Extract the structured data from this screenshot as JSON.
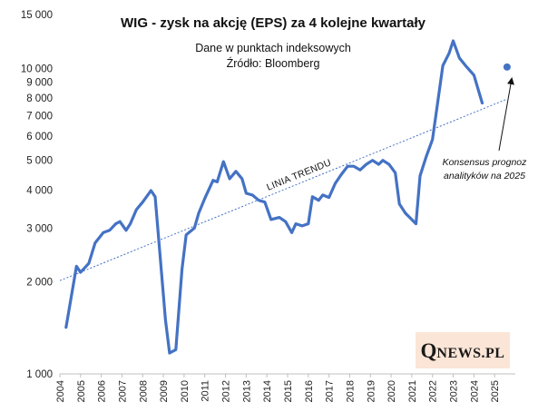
{
  "chart_data": {
    "type": "line",
    "title": "WIG - zysk na akcję (EPS) za 4 kolejne kwartały",
    "subtitle_lines": [
      "Dane w punktach indeksowych",
      "Źródło: Bloomberg"
    ],
    "y_scale": "log",
    "ylim": [
      1000,
      15000
    ],
    "yticks": [
      1000,
      2000,
      3000,
      4000,
      5000,
      6000,
      7000,
      8000,
      9000,
      10000,
      15000
    ],
    "ytick_labels": [
      "1 000",
      "2 000",
      "3 000",
      "4 000",
      "5 000",
      "6 000",
      "7 000",
      "8 000",
      "9 000",
      "10 000",
      "15 000"
    ],
    "xlim": [
      2004,
      2026
    ],
    "xticks": [
      2004,
      2005,
      2006,
      2007,
      2008,
      2009,
      2010,
      2011,
      2012,
      2013,
      2014,
      2015,
      2016,
      2017,
      2018,
      2019,
      2020,
      2021,
      2022,
      2023,
      2024,
      2025
    ],
    "xtick_labels": [
      "2004",
      "2005",
      "2006",
      "2007",
      "2008",
      "2009",
      "2010",
      "2011",
      "2012",
      "2013",
      "2014",
      "2015",
      "2016",
      "2017",
      "2018",
      "2019",
      "2020",
      "2021",
      "2022",
      "2023",
      "2024",
      "2025"
    ],
    "grid": false,
    "series": [
      {
        "name": "",
        "color": "#4472c4",
        "x": [
          2004.3,
          2004.8,
          2005.0,
          2005.4,
          2005.7,
          2006.1,
          2006.4,
          2006.7,
          2006.9,
          2007.2,
          2007.4,
          2007.7,
          2008.0,
          2008.4,
          2008.6,
          2009.1,
          2009.3,
          2009.6,
          2009.9,
          2010.1,
          2010.5,
          2010.7,
          2011.0,
          2011.4,
          2011.6,
          2011.9,
          2012.2,
          2012.5,
          2012.8,
          2013.0,
          2013.3,
          2013.6,
          2013.9,
          2014.2,
          2014.6,
          2014.9,
          2015.2,
          2015.4,
          2015.7,
          2016.0,
          2016.2,
          2016.5,
          2016.7,
          2017.0,
          2017.3,
          2017.6,
          2017.9,
          2018.2,
          2018.5,
          2018.8,
          2019.1,
          2019.4,
          2019.6,
          2019.9,
          2020.2,
          2020.4,
          2020.7,
          2020.9,
          2021.2,
          2021.4,
          2021.7,
          2022.0,
          2022.5,
          2022.8,
          2023.0,
          2023.3,
          2023.6,
          2024.0,
          2024.4
        ],
        "y": [
          1420,
          2250,
          2150,
          2300,
          2680,
          2900,
          2950,
          3100,
          3150,
          2950,
          3100,
          3450,
          3650,
          3980,
          3800,
          1500,
          1170,
          1200,
          2200,
          2850,
          3000,
          3350,
          3750,
          4300,
          4250,
          4950,
          4350,
          4600,
          4350,
          3900,
          3850,
          3700,
          3650,
          3200,
          3250,
          3150,
          2900,
          3100,
          3050,
          3100,
          3800,
          3700,
          3850,
          3780,
          4200,
          4500,
          4780,
          4780,
          4650,
          4850,
          5000,
          4850,
          5000,
          4850,
          4550,
          3600,
          3350,
          3250,
          3100,
          4450,
          5150,
          5850,
          10200,
          11200,
          12300,
          10800,
          10200,
          9500,
          7700
        ]
      }
    ],
    "forecast_point": {
      "x": 2025.6,
      "y": 10100,
      "color": "#4472c4"
    },
    "trend_line": {
      "x": [
        2004,
        2025.6
      ],
      "y": [
        2020,
        7930
      ],
      "color": "#4472c4",
      "style": "dotted",
      "label": "LINIA TRENDU"
    },
    "annotations": [
      {
        "lines": [
          "Konsensus prognoz",
          "analityków na 2025"
        ]
      }
    ]
  },
  "logo": {
    "first": "Q",
    "rest": "NEWS.PL"
  }
}
